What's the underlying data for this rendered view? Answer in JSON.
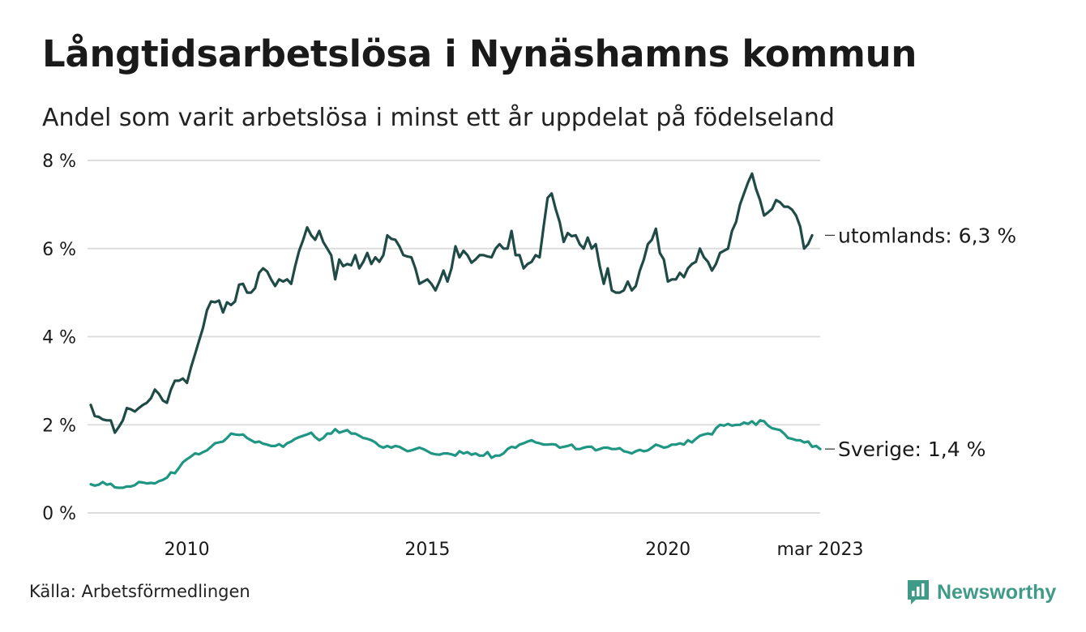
{
  "header": {
    "title": "Långtidsarbetslösa i Nynäshamns kommun",
    "subtitle": "Andel som varit arbetslösa i minst ett år uppdelat på födelseland"
  },
  "footer": {
    "source": "Källa: Arbetsförmedlingen",
    "brand": "Newsworthy"
  },
  "colors": {
    "utomlands": "#1f4a45",
    "sverige": "#1f9683",
    "grid": "#dddddd",
    "brand": "#3f9a87"
  },
  "chart_data": {
    "type": "line",
    "x_start": "2008-01",
    "x_end": "2023-03",
    "frequency": "monthly",
    "x_ticks": [
      "2010",
      "2015",
      "2020",
      "mar 2023"
    ],
    "y_ticks": [
      "0 %",
      "2 %",
      "4 %",
      "6 %",
      "8 %"
    ],
    "ylim": [
      0,
      8
    ],
    "grid": true,
    "series": [
      {
        "name": "utomlands",
        "end_label": "utomlands: 6,3 %",
        "values": [
          2.45,
          2.2,
          2.18,
          2.12,
          2.1,
          2.1,
          1.82,
          1.95,
          2.1,
          2.38,
          2.35,
          2.3,
          2.38,
          2.45,
          2.5,
          2.6,
          2.8,
          2.7,
          2.55,
          2.5,
          2.8,
          3.0,
          3.0,
          3.05,
          2.95,
          3.3,
          3.6,
          3.9,
          4.2,
          4.6,
          4.8,
          4.78,
          4.82,
          4.55,
          4.78,
          4.72,
          4.8,
          5.18,
          5.2,
          5.0,
          5.0,
          5.1,
          5.45,
          5.55,
          5.48,
          5.3,
          5.15,
          5.3,
          5.25,
          5.3,
          5.2,
          5.6,
          5.95,
          6.2,
          6.48,
          6.3,
          6.2,
          6.4,
          6.15,
          6.0,
          5.85,
          5.3,
          5.75,
          5.6,
          5.65,
          5.62,
          5.85,
          5.55,
          5.7,
          5.9,
          5.65,
          5.8,
          5.7,
          5.85,
          6.3,
          6.22,
          6.2,
          6.05,
          5.85,
          5.82,
          5.8,
          5.55,
          5.2,
          5.25,
          5.3,
          5.2,
          5.05,
          5.25,
          5.5,
          5.25,
          5.55,
          6.05,
          5.8,
          5.95,
          5.85,
          5.68,
          5.75,
          5.85,
          5.85,
          5.82,
          5.8,
          6.0,
          6.1,
          6.0,
          6.0,
          6.4,
          5.85,
          5.85,
          5.55,
          5.65,
          5.7,
          5.85,
          5.8,
          6.5,
          7.15,
          7.25,
          6.9,
          6.6,
          6.15,
          6.35,
          6.28,
          6.3,
          6.1,
          6.0,
          6.25,
          6.0,
          6.1,
          5.6,
          5.2,
          5.55,
          5.05,
          5.0,
          5.0,
          5.05,
          5.25,
          5.05,
          5.15,
          5.5,
          5.75,
          6.1,
          6.2,
          6.45,
          5.9,
          5.75,
          5.25,
          5.3,
          5.3,
          5.45,
          5.35,
          5.55,
          5.65,
          5.7,
          6.0,
          5.8,
          5.7,
          5.5,
          5.65,
          5.9,
          5.95,
          6.0,
          6.4,
          6.6,
          7.0,
          7.25,
          7.5,
          7.7,
          7.35,
          7.1,
          6.75,
          6.82,
          6.9,
          7.1,
          7.05,
          6.95,
          6.95,
          6.88,
          6.75,
          6.5,
          6.0,
          6.1,
          6.3
        ]
      },
      {
        "name": "Sverige",
        "end_label": "Sverige: 1,4 %",
        "values": [
          0.65,
          0.62,
          0.64,
          0.7,
          0.64,
          0.66,
          0.58,
          0.57,
          0.57,
          0.6,
          0.6,
          0.63,
          0.7,
          0.69,
          0.67,
          0.68,
          0.67,
          0.72,
          0.75,
          0.8,
          0.92,
          0.9,
          1.02,
          1.15,
          1.22,
          1.28,
          1.35,
          1.33,
          1.38,
          1.42,
          1.5,
          1.58,
          1.6,
          1.62,
          1.7,
          1.8,
          1.78,
          1.77,
          1.78,
          1.7,
          1.65,
          1.6,
          1.62,
          1.57,
          1.55,
          1.52,
          1.52,
          1.56,
          1.5,
          1.58,
          1.62,
          1.68,
          1.72,
          1.75,
          1.78,
          1.82,
          1.72,
          1.65,
          1.7,
          1.8,
          1.8,
          1.9,
          1.82,
          1.85,
          1.88,
          1.8,
          1.8,
          1.75,
          1.7,
          1.68,
          1.65,
          1.6,
          1.52,
          1.48,
          1.52,
          1.48,
          1.52,
          1.5,
          1.45,
          1.4,
          1.42,
          1.45,
          1.48,
          1.45,
          1.4,
          1.35,
          1.33,
          1.32,
          1.35,
          1.35,
          1.33,
          1.3,
          1.4,
          1.35,
          1.38,
          1.32,
          1.35,
          1.3,
          1.3,
          1.38,
          1.25,
          1.3,
          1.3,
          1.35,
          1.45,
          1.5,
          1.48,
          1.55,
          1.58,
          1.62,
          1.65,
          1.6,
          1.58,
          1.55,
          1.55,
          1.56,
          1.55,
          1.48,
          1.5,
          1.52,
          1.55,
          1.45,
          1.45,
          1.48,
          1.5,
          1.5,
          1.42,
          1.45,
          1.48,
          1.48,
          1.45,
          1.45,
          1.47,
          1.4,
          1.38,
          1.35,
          1.4,
          1.43,
          1.4,
          1.42,
          1.48,
          1.55,
          1.52,
          1.48,
          1.5,
          1.55,
          1.55,
          1.58,
          1.55,
          1.65,
          1.6,
          1.68,
          1.75,
          1.78,
          1.8,
          1.78,
          1.92,
          2.0,
          1.98,
          2.02,
          1.98,
          2.0,
          2.0,
          2.05,
          2.02,
          2.08,
          2.0,
          2.1,
          2.08,
          1.98,
          1.92,
          1.9,
          1.88,
          1.8,
          1.7,
          1.68,
          1.65,
          1.65,
          1.6,
          1.62,
          1.5,
          1.52,
          1.45
        ]
      }
    ]
  }
}
